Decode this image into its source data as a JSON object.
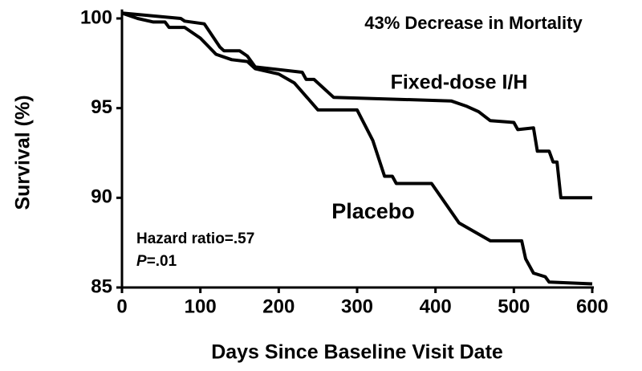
{
  "chart_data": {
    "type": "line",
    "title": "43% Decrease in Mortality",
    "xlabel": "Days Since Baseline Visit Date",
    "ylabel": "Survival (%)",
    "xlim": [
      0,
      600
    ],
    "xticks": [
      0,
      100,
      200,
      300,
      400,
      500,
      600
    ],
    "ylim": [
      85,
      100.5
    ],
    "yticks": [
      85,
      90,
      95,
      100
    ],
    "grid": false,
    "series": [
      {
        "name": "Fixed-dose I/H",
        "color": "#000000",
        "x": [
          0,
          75,
          80,
          105,
          125,
          130,
          150,
          160,
          170,
          230,
          235,
          245,
          270,
          420,
          440,
          455,
          470,
          500,
          505,
          525,
          530,
          545,
          550,
          555,
          560,
          600
        ],
        "values": [
          100.3,
          100.0,
          99.85,
          99.7,
          98.4,
          98.2,
          98.2,
          97.9,
          97.3,
          97.0,
          96.6,
          96.6,
          95.6,
          95.4,
          95.1,
          94.8,
          94.3,
          94.2,
          93.8,
          93.9,
          92.6,
          92.6,
          92.0,
          92.0,
          90.0,
          90.0
        ]
      },
      {
        "name": "Placebo",
        "color": "#000000",
        "x": [
          0,
          20,
          40,
          55,
          60,
          80,
          100,
          120,
          140,
          160,
          170,
          200,
          220,
          250,
          300,
          320,
          335,
          345,
          350,
          395,
          430,
          470,
          510,
          515,
          525,
          540,
          545,
          600
        ],
        "values": [
          100.3,
          100.0,
          99.8,
          99.8,
          99.5,
          99.5,
          98.9,
          98.0,
          97.7,
          97.6,
          97.2,
          96.9,
          96.4,
          94.9,
          94.9,
          93.2,
          91.2,
          91.2,
          90.8,
          90.8,
          88.6,
          87.6,
          87.6,
          86.6,
          85.8,
          85.6,
          85.3,
          85.2
        ]
      }
    ],
    "annotations": {
      "hazard_ratio": "Hazard ratio=.57",
      "p_symbol": "P",
      "p_value": "=.01"
    }
  }
}
